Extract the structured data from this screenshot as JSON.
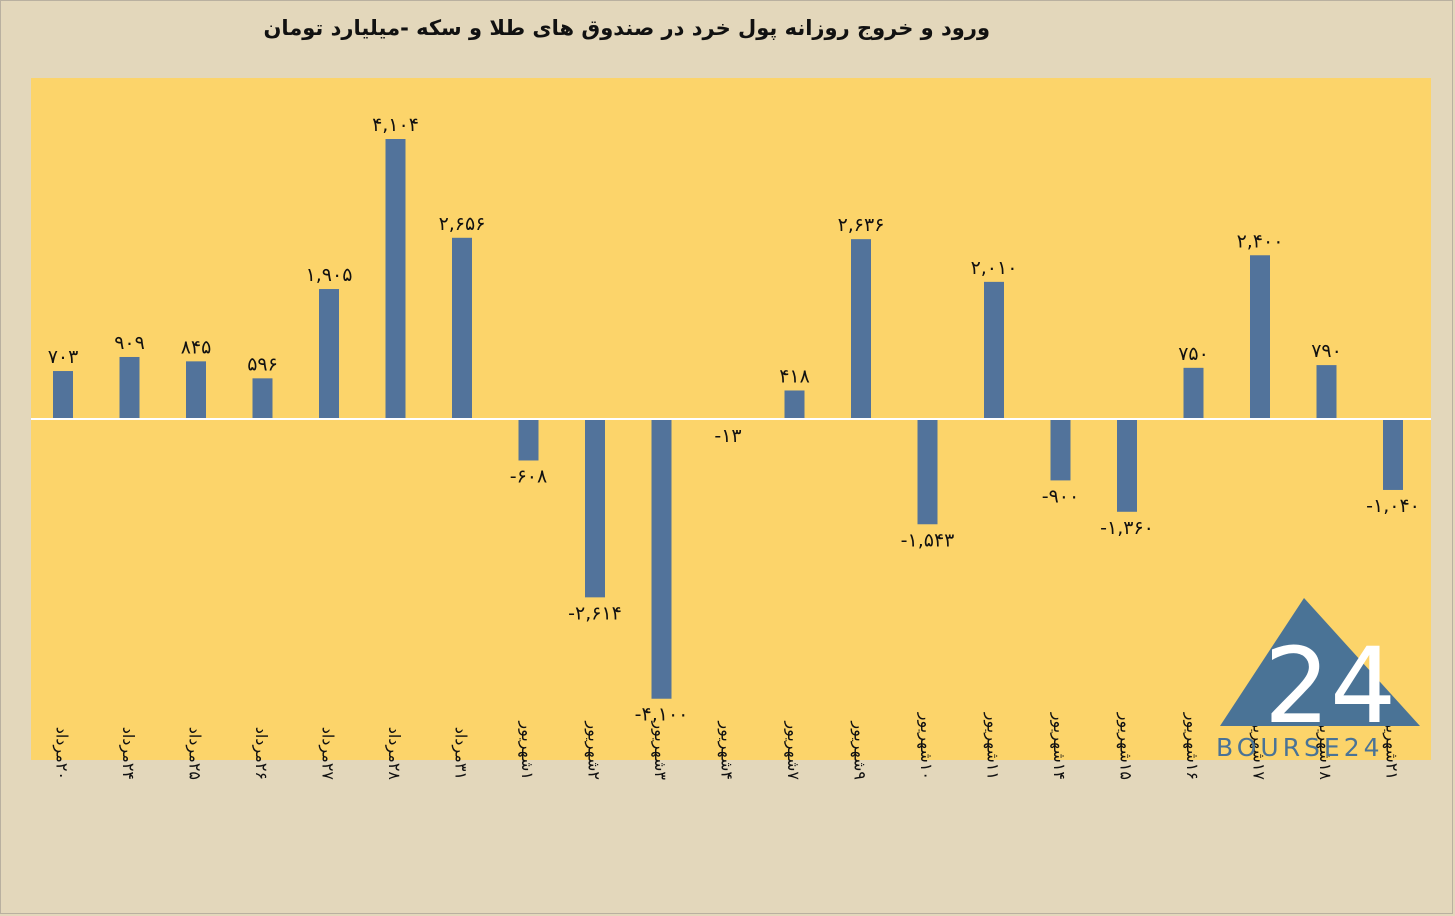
{
  "title": "ورود و خروج روزانه پول خرد در صندوق های طلا و سکه -میلیارد تومان",
  "logo": {
    "text": "BOURSE24",
    "mark_text": "24"
  },
  "colors": {
    "page_bg": "#e3d7bb",
    "plot_bg": "#fcd46a",
    "bar": "#52739b",
    "axis": "#ffffff",
    "logo": "#4a7396"
  },
  "chart_data": {
    "type": "bar",
    "title": "ورود و خروج روزانه پول خرد در صندوق های طلا و سکه -میلیارد تومان",
    "xlabel": "",
    "ylabel": "",
    "grid": false,
    "legend": "none",
    "ylim": [
      -4900,
      5100
    ],
    "categories": [
      "۲۰مرداد",
      "۲۴مرداد",
      "۲۵مرداد",
      "۲۶مرداد",
      "۲۷مرداد",
      "۲۸مرداد",
      "۳۱مرداد",
      "۱شهریور",
      "۲شهریور",
      "۳شهریور",
      "۴شهریور",
      "۷شهریور",
      "۹شهریور",
      "۱۰شهریور",
      "۱۱شهریور",
      "۱۴شهریور",
      "۱۵شهریور",
      "۱۶شهریور",
      "۱۷شهریور",
      "۱۸شهریور",
      "۲۱شهریور"
    ],
    "values": [
      703,
      909,
      845,
      596,
      1905,
      4104,
      2656,
      -608,
      -2614,
      -4100,
      -13,
      418,
      2636,
      -1543,
      2010,
      -900,
      -1360,
      750,
      2400,
      790,
      -1040
    ],
    "data_labels": [
      "۷۰۳",
      "۹۰۹",
      "۸۴۵",
      "۵۹۶",
      "۱,۹۰۵",
      "۴,۱۰۴",
      "۲,۶۵۶",
      "-۶۰۸",
      "-۲,۶۱۴",
      "-۴,۱۰۰",
      "-۱۳",
      "۴۱۸",
      "۲,۶۳۶",
      "-۱,۵۴۳",
      "۲,۰۱۰",
      "-۹۰۰",
      "-۱,۳۶۰",
      "۷۵۰",
      "۲,۴۰۰",
      "۷۹۰",
      "-۱,۰۴۰"
    ]
  }
}
